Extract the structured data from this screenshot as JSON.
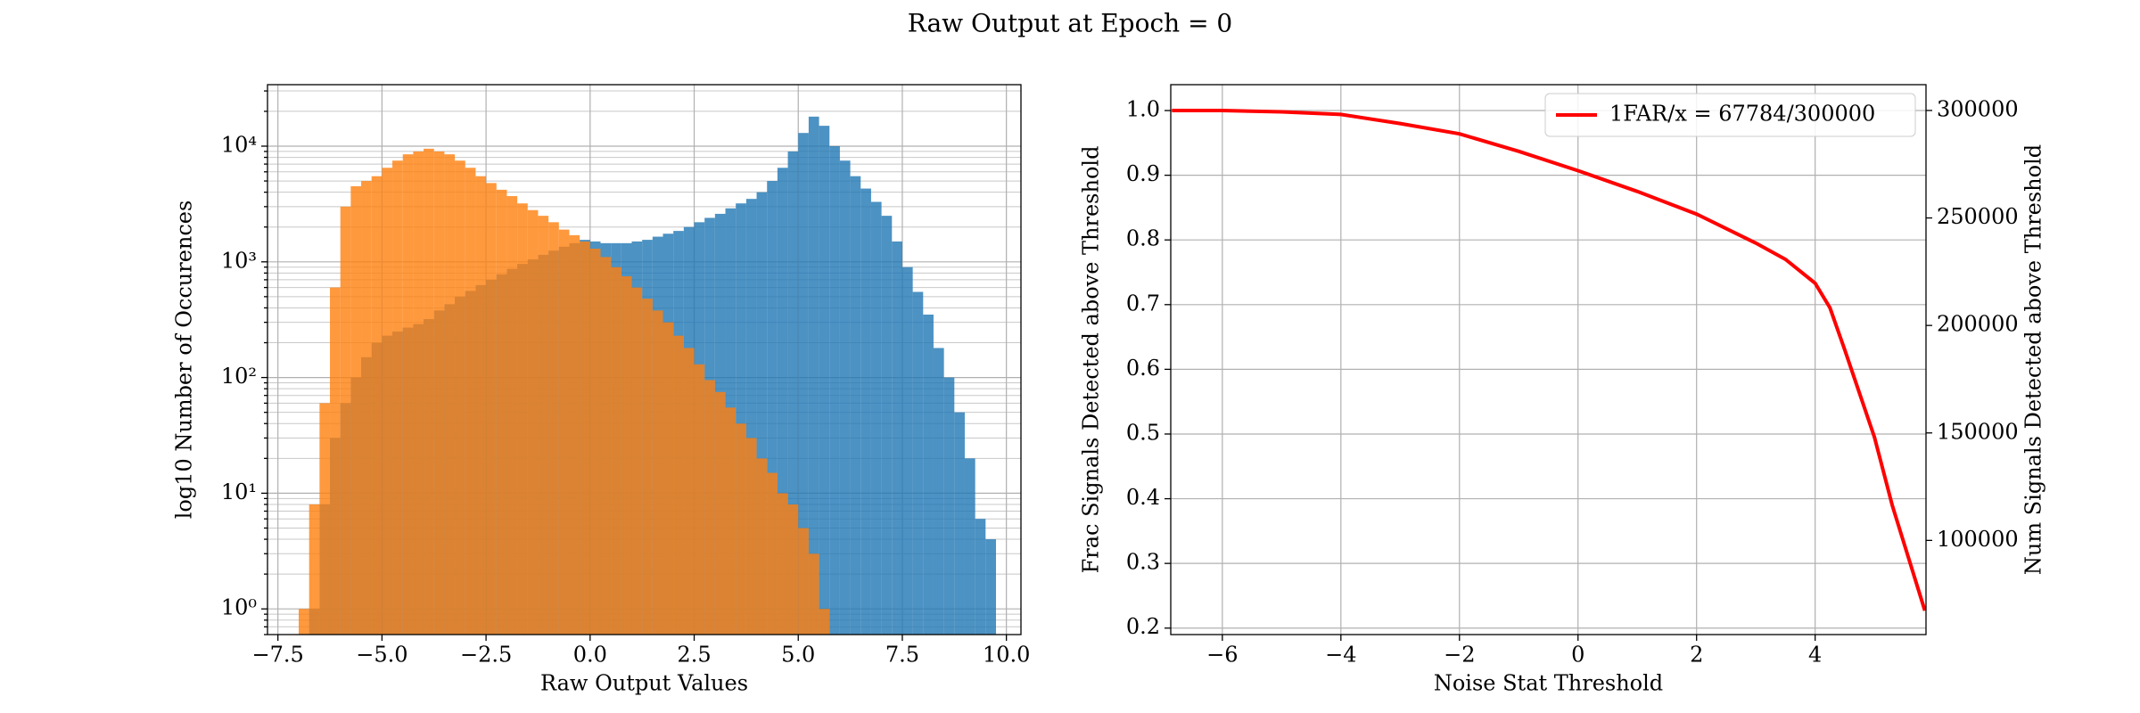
{
  "title": "Raw Output at Epoch = 0",
  "chart_data": [
    {
      "type": "histogram",
      "yscale": "log",
      "grid": true,
      "xlabel": "Raw Output Values",
      "ylabel": "log10 Number of Occurences",
      "bins": [
        -7,
        -6.75,
        -6.5,
        -6.25,
        -6,
        -5.75,
        -5.5,
        -5.25,
        -5,
        -4.75,
        -4.5,
        -4.25,
        -4,
        -3.75,
        -3.5,
        -3.25,
        -3,
        -2.75,
        -2.5,
        -2.25,
        -2,
        -1.75,
        -1.5,
        -1.25,
        -1,
        -0.75,
        -0.5,
        -0.25,
        0,
        0.25,
        0.5,
        0.75,
        1,
        1.25,
        1.5,
        1.75,
        2,
        2.25,
        2.5,
        2.75,
        3,
        3.25,
        3.5,
        3.75,
        4,
        4.25,
        4.5,
        4.75,
        5,
        5.25,
        5.5,
        5.75,
        6,
        6.25,
        6.5,
        6.75,
        7,
        7.25,
        7.5,
        7.75,
        8,
        8.25,
        8.5,
        8.75,
        9,
        9.25,
        9.5,
        9.75
      ],
      "series": [
        {
          "color": "#1f77b4",
          "values": [
            null,
            1,
            8,
            30,
            60,
            100,
            150,
            200,
            230,
            250,
            270,
            290,
            320,
            380,
            430,
            500,
            560,
            630,
            700,
            780,
            870,
            960,
            1050,
            1150,
            1250,
            1350,
            1450,
            1550,
            1500,
            1450,
            1450,
            1450,
            1500,
            1550,
            1650,
            1750,
            1850,
            2000,
            2200,
            2400,
            2600,
            2900,
            3200,
            3500,
            4000,
            5000,
            6500,
            9000,
            13000,
            18000,
            15000,
            10000,
            7500,
            5500,
            4300,
            3300,
            2500,
            1500,
            900,
            550,
            350,
            180,
            100,
            50,
            20,
            6,
            4
          ]
        },
        {
          "color": "#ff7f0e",
          "values": [
            1,
            8,
            60,
            600,
            3000,
            4500,
            5000,
            5500,
            6500,
            7500,
            8500,
            9000,
            9500,
            9000,
            8500,
            7500,
            6500,
            5500,
            4800,
            4200,
            3700,
            3200,
            2800,
            2500,
            2200,
            1900,
            1700,
            1500,
            1300,
            1100,
            900,
            750,
            600,
            480,
            380,
            300,
            230,
            180,
            130,
            95,
            75,
            55,
            40,
            30,
            20,
            15,
            10,
            8,
            5,
            3,
            1,
            null,
            null,
            null,
            null,
            null,
            null,
            null,
            null,
            null,
            null,
            null,
            null,
            null,
            null,
            null,
            null
          ]
        }
      ],
      "xlim": [
        -7.75,
        10.35
      ],
      "ylim": [
        0.6,
        34000
      ],
      "xticks": [
        {
          "value": -7.5,
          "label": "−7.5"
        },
        {
          "value": -5,
          "label": "−5.0"
        },
        {
          "value": -2.5,
          "label": "−2.5"
        },
        {
          "value": 0,
          "label": "0.0"
        },
        2.5,
        {
          "value": 5,
          "label": "5.0"
        },
        7.5,
        {
          "value": 10,
          "label": "10.0"
        }
      ],
      "yticks": [
        {
          "value": 1,
          "label": "10⁰"
        },
        {
          "value": 10,
          "label": "10¹"
        },
        {
          "value": 100,
          "label": "10²"
        },
        {
          "value": 1000,
          "label": "10³"
        },
        {
          "value": 10000,
          "label": "10⁴"
        }
      ],
      "yminorticks": [
        0.6,
        0.7,
        0.8,
        0.9,
        2,
        3,
        4,
        5,
        6,
        7,
        8,
        9,
        20,
        30,
        40,
        50,
        60,
        70,
        80,
        90,
        200,
        300,
        400,
        500,
        600,
        700,
        800,
        900,
        2000,
        3000,
        4000,
        5000,
        6000,
        7000,
        8000,
        9000,
        20000,
        30000
      ]
    },
    {
      "type": "line",
      "grid": true,
      "legend": "upper right",
      "xlabel": "Noise Stat Threshold",
      "ylabel": "Frac Signals Detected above Threshold",
      "y2label": "Num Signals Detected above Threshold",
      "x": [
        -6.85,
        -6,
        -5,
        -4,
        -3,
        -2,
        -1,
        0,
        1,
        2,
        3,
        3.5,
        4,
        4.25,
        4.5,
        5,
        5.3,
        5.85
      ],
      "series": [
        {
          "name": "1FAR/x = 67784/300000",
          "color": "#ff0000",
          "values": [
            1.0,
            1.0,
            0.998,
            0.994,
            0.98,
            0.964,
            0.937,
            0.907,
            0.875,
            0.84,
            0.795,
            0.77,
            0.733,
            0.695,
            0.63,
            0.495,
            0.39,
            0.227
          ]
        }
      ],
      "xlim": [
        -6.87,
        5.87
      ],
      "ylim": [
        0.19,
        1.04
      ],
      "y2lim": [
        56200,
        312000
      ],
      "xticks": [
        {
          "value": -6,
          "label": "−6"
        },
        {
          "value": -4,
          "label": "−4"
        },
        {
          "value": -2,
          "label": "−2"
        },
        0,
        2,
        4
      ],
      "yticks": [
        0.2,
        0.3,
        0.4,
        0.5,
        0.6,
        0.7,
        0.8,
        0.9,
        {
          "value": 1,
          "label": "1.0"
        }
      ],
      "y2ticks": [
        100000,
        150000,
        200000,
        250000,
        300000
      ]
    }
  ]
}
